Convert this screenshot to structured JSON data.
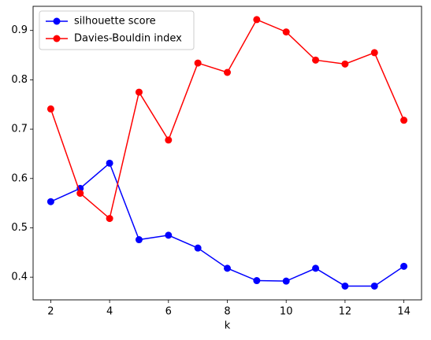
{
  "chart_data": {
    "type": "line",
    "x": [
      2,
      3,
      4,
      5,
      6,
      7,
      8,
      9,
      10,
      11,
      12,
      13,
      14
    ],
    "xlabel": "k",
    "series": [
      {
        "name": "silhouette score",
        "color": "#0000ff",
        "values": [
          0.553,
          0.58,
          0.631,
          0.476,
          0.485,
          0.459,
          0.418,
          0.393,
          0.392,
          0.418,
          0.382,
          0.382,
          0.422
        ]
      },
      {
        "name": "Davies-Bouldin index",
        "color": "#ff0000",
        "values": [
          0.741,
          0.57,
          0.519,
          0.775,
          0.678,
          0.834,
          0.815,
          0.922,
          0.897,
          0.84,
          0.832,
          0.855,
          0.718
        ]
      }
    ],
    "xlim": [
      1.4,
      14.6
    ],
    "ylim": [
      0.354,
      0.949
    ],
    "xticks": [
      2,
      4,
      6,
      8,
      10,
      12,
      14
    ],
    "yticks": [
      0.4,
      0.5,
      0.6,
      0.7,
      0.8,
      0.9
    ],
    "legend": "upper left",
    "grid": false
  }
}
